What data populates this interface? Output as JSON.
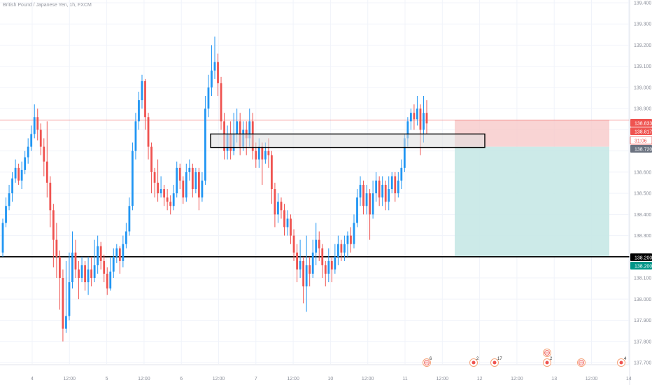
{
  "header": {
    "symbol_title": "British Pound / Japanese Yen, 1h, FXCM"
  },
  "colors": {
    "up": "#2196f3",
    "down": "#ef5350",
    "grid": "#f0f3fa",
    "axis_text": "#8a8e99",
    "support_line": "#000000",
    "price_line": "#ef5350",
    "risk_zone": "#f7c9c9",
    "reward_zone": "#c6e8e6",
    "zone_box": "#dedede",
    "badge_red": "#ef5350",
    "badge_gray": "#6b7280",
    "badge_black": "#000000",
    "badge_teal": "#009688"
  },
  "axis": {
    "y_ticks": [
      "139.400",
      "139.300",
      "139.200",
      "139.100",
      "139.000",
      "138.900",
      "138.800",
      "138.700",
      "138.600",
      "138.500",
      "138.400",
      "138.300",
      "138.200",
      "138.100",
      "138.000",
      "137.900",
      "137.800",
      "137.700"
    ],
    "x_ticks": [
      "4",
      "12:00",
      "5",
      "12:00",
      "6",
      "12:00",
      "7",
      "12:00",
      "10",
      "12:00",
      "11",
      "12:00",
      "12",
      "12:00",
      "13",
      "12:00",
      "14"
    ]
  },
  "price_badges": [
    {
      "text": "138.833",
      "kind": "red"
    },
    {
      "text": "138.817",
      "kind": "red"
    },
    {
      "text": "31:06",
      "kind": "timer"
    },
    {
      "text": "138.720",
      "kind": "gray"
    },
    {
      "text": "138.200",
      "kind": "black"
    },
    {
      "text": "138.200",
      "kind": "teal"
    }
  ],
  "events": [
    {
      "count": "6",
      "icon": "globe-icon"
    },
    {
      "count": "2",
      "icon": "flag-icon"
    },
    {
      "count": "17",
      "icon": "flag-icon"
    },
    {
      "count": "",
      "icon": "globe-icon"
    },
    {
      "count": "2",
      "icon": "flag-icon"
    },
    {
      "count": "",
      "icon": "globe-icon"
    },
    {
      "count": "4",
      "icon": "flag-icon"
    }
  ],
  "chart_data": {
    "type": "candlestick",
    "title": "British Pound / Japanese Yen, 1h, FXCM",
    "ylim": [
      137.67,
      139.42
    ],
    "candles": [
      [
        138.22,
        138.36,
        138.38,
        138.2
      ],
      [
        138.36,
        138.44,
        138.48,
        138.34
      ],
      [
        138.44,
        138.5,
        138.54,
        138.42
      ],
      [
        138.5,
        138.57,
        138.6,
        138.46
      ],
      [
        138.57,
        138.62,
        138.66,
        138.55
      ],
      [
        138.62,
        138.56,
        138.64,
        138.54
      ],
      [
        138.56,
        138.61,
        138.65,
        138.52
      ],
      [
        138.61,
        138.67,
        138.7,
        138.59
      ],
      [
        138.67,
        138.72,
        138.76,
        138.64
      ],
      [
        138.72,
        138.78,
        138.82,
        138.7
      ],
      [
        138.78,
        138.86,
        138.92,
        138.76
      ],
      [
        138.86,
        138.8,
        138.9,
        138.75
      ],
      [
        138.8,
        138.72,
        138.83,
        138.68
      ],
      [
        138.72,
        138.65,
        138.76,
        138.58
      ],
      [
        138.65,
        138.55,
        138.84,
        138.48
      ],
      [
        138.55,
        138.42,
        138.58,
        138.34
      ],
      [
        138.42,
        138.28,
        138.45,
        138.15
      ],
      [
        138.28,
        138.2,
        138.36,
        138.1
      ],
      [
        138.2,
        138.1,
        138.23,
        137.95
      ],
      [
        138.1,
        137.86,
        138.14,
        137.8
      ],
      [
        137.86,
        137.92,
        138.18,
        137.84
      ],
      [
        137.92,
        138.08,
        138.22,
        137.9
      ],
      [
        138.08,
        138.22,
        138.32,
        138.05
      ],
      [
        138.22,
        138.14,
        138.28,
        138.1
      ],
      [
        138.14,
        138.1,
        138.18,
        138.0
      ],
      [
        138.1,
        138.16,
        138.2,
        138.08
      ],
      [
        138.16,
        138.08,
        138.18,
        138.04
      ],
      [
        138.08,
        138.14,
        138.2,
        138.02
      ],
      [
        138.14,
        138.1,
        138.2,
        138.06
      ],
      [
        138.1,
        138.16,
        138.28,
        138.08
      ],
      [
        138.16,
        138.25,
        138.3,
        138.12
      ],
      [
        138.25,
        138.18,
        138.27,
        138.14
      ],
      [
        138.18,
        138.12,
        138.21,
        138.08
      ],
      [
        138.12,
        138.05,
        138.15,
        138.02
      ],
      [
        138.05,
        138.13,
        138.2,
        138.04
      ],
      [
        138.13,
        138.2,
        138.24,
        138.1
      ],
      [
        138.2,
        138.24,
        138.26,
        138.17
      ],
      [
        138.24,
        138.18,
        138.25,
        138.12
      ],
      [
        138.18,
        138.26,
        138.3,
        138.15
      ],
      [
        138.26,
        138.32,
        138.36,
        138.24
      ],
      [
        138.32,
        138.44,
        138.48,
        138.3
      ],
      [
        138.44,
        138.7,
        138.74,
        138.42
      ],
      [
        138.7,
        138.84,
        138.88,
        138.66
      ],
      [
        138.84,
        138.94,
        138.98,
        138.8
      ],
      [
        138.94,
        139.03,
        139.06,
        138.9
      ],
      [
        139.03,
        138.86,
        139.04,
        138.8
      ],
      [
        138.86,
        138.72,
        138.88,
        138.66
      ],
      [
        138.72,
        138.6,
        138.74,
        138.5
      ],
      [
        138.6,
        138.55,
        138.62,
        138.48
      ],
      [
        138.55,
        138.5,
        138.66,
        138.46
      ],
      [
        138.5,
        138.52,
        138.58,
        138.48
      ],
      [
        138.52,
        138.48,
        138.54,
        138.44
      ],
      [
        138.48,
        138.46,
        138.52,
        138.42
      ],
      [
        138.46,
        138.44,
        138.49,
        138.4
      ],
      [
        138.44,
        138.5,
        138.54,
        138.42
      ],
      [
        138.5,
        138.62,
        138.65,
        138.48
      ],
      [
        138.62,
        138.56,
        138.64,
        138.52
      ],
      [
        138.56,
        138.48,
        138.58,
        138.45
      ],
      [
        138.48,
        138.6,
        138.64,
        138.46
      ],
      [
        138.6,
        138.62,
        138.66,
        138.56
      ],
      [
        138.62,
        138.52,
        138.64,
        138.48
      ],
      [
        138.52,
        138.6,
        138.62,
        138.5
      ],
      [
        138.6,
        138.48,
        138.62,
        138.42
      ],
      [
        138.48,
        138.56,
        138.6,
        138.46
      ],
      [
        138.56,
        138.9,
        138.96,
        138.54
      ],
      [
        138.9,
        139.0,
        139.06,
        138.86
      ],
      [
        139.0,
        139.08,
        139.2,
        138.96
      ],
      [
        139.08,
        139.12,
        139.24,
        139.04
      ],
      [
        139.12,
        139.02,
        139.16,
        138.96
      ],
      [
        139.02,
        138.84,
        139.05,
        138.8
      ],
      [
        138.84,
        138.7,
        138.88,
        138.66
      ],
      [
        138.7,
        138.78,
        138.82,
        138.66
      ],
      [
        138.78,
        138.7,
        138.84,
        138.66
      ],
      [
        138.7,
        138.78,
        138.88,
        138.68
      ],
      [
        138.78,
        138.84,
        138.9,
        138.74
      ],
      [
        138.84,
        138.72,
        138.88,
        138.68
      ],
      [
        138.72,
        138.8,
        138.84,
        138.7
      ],
      [
        138.8,
        138.76,
        138.84,
        138.68
      ],
      [
        138.76,
        138.84,
        138.9,
        138.72
      ],
      [
        138.84,
        138.7,
        138.88,
        138.66
      ],
      [
        138.7,
        138.66,
        138.74,
        138.62
      ],
      [
        138.66,
        138.72,
        138.76,
        138.62
      ],
      [
        138.72,
        138.66,
        138.74,
        138.54
      ],
      [
        138.66,
        138.7,
        138.74,
        138.64
      ],
      [
        138.7,
        138.68,
        138.76,
        138.62
      ],
      [
        138.68,
        138.52,
        138.7,
        138.45
      ],
      [
        138.52,
        138.4,
        138.55,
        138.34
      ],
      [
        138.4,
        138.46,
        138.5,
        138.36
      ],
      [
        138.46,
        138.42,
        138.48,
        138.38
      ],
      [
        138.42,
        138.34,
        138.45,
        138.3
      ],
      [
        138.34,
        138.38,
        138.42,
        138.3
      ],
      [
        138.38,
        138.3,
        138.4,
        138.26
      ],
      [
        138.3,
        138.22,
        138.33,
        138.18
      ],
      [
        138.22,
        138.14,
        138.26,
        138.08
      ],
      [
        138.14,
        138.18,
        138.28,
        138.1
      ],
      [
        138.18,
        138.06,
        138.2,
        137.98
      ],
      [
        138.06,
        138.16,
        138.3,
        137.94
      ],
      [
        138.16,
        138.12,
        138.2,
        138.06
      ],
      [
        138.12,
        138.22,
        138.28,
        138.1
      ],
      [
        138.22,
        138.28,
        138.36,
        138.16
      ],
      [
        138.28,
        138.24,
        138.32,
        138.18
      ],
      [
        138.24,
        138.16,
        138.26,
        138.1
      ],
      [
        138.16,
        138.12,
        138.18,
        138.06
      ],
      [
        138.12,
        138.18,
        138.24,
        138.08
      ],
      [
        138.18,
        138.14,
        138.2,
        138.08
      ],
      [
        138.14,
        138.2,
        138.26,
        138.12
      ],
      [
        138.2,
        138.26,
        138.3,
        138.16
      ],
      [
        138.26,
        138.22,
        138.28,
        138.18
      ],
      [
        138.22,
        138.26,
        138.3,
        138.18
      ],
      [
        138.26,
        138.3,
        138.32,
        138.2
      ],
      [
        138.3,
        138.26,
        138.34,
        138.22
      ],
      [
        138.26,
        138.36,
        138.4,
        138.24
      ],
      [
        138.36,
        138.48,
        138.52,
        138.34
      ],
      [
        138.48,
        138.54,
        138.58,
        138.44
      ],
      [
        138.54,
        138.44,
        138.56,
        138.4
      ],
      [
        138.44,
        138.5,
        138.54,
        138.4
      ],
      [
        138.5,
        138.4,
        138.52,
        138.28
      ],
      [
        138.4,
        138.5,
        138.56,
        138.38
      ],
      [
        138.5,
        138.56,
        138.6,
        138.46
      ],
      [
        138.56,
        138.48,
        138.58,
        138.44
      ],
      [
        138.48,
        138.54,
        138.58,
        138.44
      ],
      [
        138.54,
        138.46,
        138.56,
        138.42
      ],
      [
        138.46,
        138.52,
        138.58,
        138.42
      ],
      [
        138.52,
        138.58,
        138.6,
        138.5
      ],
      [
        138.58,
        138.5,
        138.6,
        138.46
      ],
      [
        138.5,
        138.56,
        138.6,
        138.48
      ],
      [
        138.56,
        138.62,
        138.66,
        138.52
      ],
      [
        138.62,
        138.76,
        138.78,
        138.6
      ],
      [
        138.76,
        138.84,
        138.86,
        138.72
      ],
      [
        138.84,
        138.88,
        138.9,
        138.8
      ],
      [
        138.88,
        138.85,
        138.92,
        138.8
      ],
      [
        138.85,
        138.9,
        138.96,
        138.82
      ],
      [
        138.9,
        138.8,
        138.92,
        138.68
      ],
      [
        138.8,
        138.88,
        138.96,
        138.74
      ],
      [
        138.88,
        138.83,
        138.94,
        138.78
      ]
    ],
    "lines": [
      {
        "kind": "support",
        "price": 138.2
      },
      {
        "kind": "current",
        "price": 138.83
      }
    ],
    "zone_box": {
      "top": 138.8,
      "bottom": 138.72
    },
    "position": {
      "entry": 138.72,
      "stop": 138.83,
      "target": 138.2
    }
  }
}
